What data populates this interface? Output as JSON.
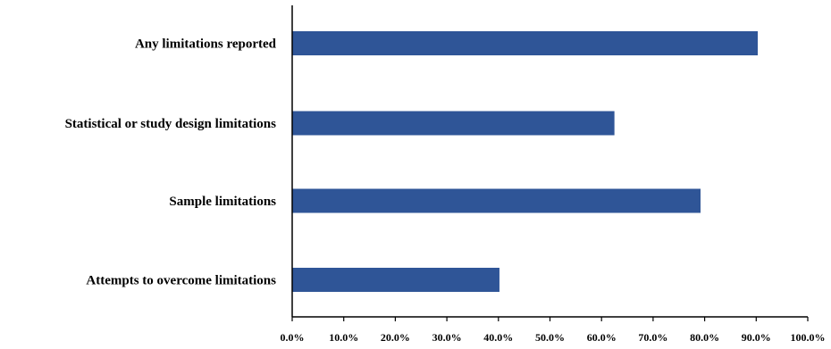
{
  "chart_data": {
    "type": "bar",
    "orientation": "horizontal",
    "categories": [
      "Any limitations reported",
      "Statistical or study design limitations",
      "Sample limitations",
      "Attempts to overcome limitations"
    ],
    "values": [
      90.3,
      62.5,
      79.2,
      40.2
    ],
    "title": "",
    "xlabel": "",
    "ylabel": "",
    "xlim": [
      0,
      100
    ],
    "ticks": [
      0,
      10,
      20,
      30,
      40,
      50,
      60,
      70,
      80,
      90,
      100
    ],
    "tick_labels": [
      "0.0%",
      "10.0%",
      "20.0%",
      "30.0%",
      "40.0%",
      "50.0%",
      "60.0%",
      "70.0%",
      "80.0%",
      "90.0%",
      "100.0%"
    ],
    "grid": false,
    "legend": "none",
    "bar_color": "#2F5597"
  }
}
